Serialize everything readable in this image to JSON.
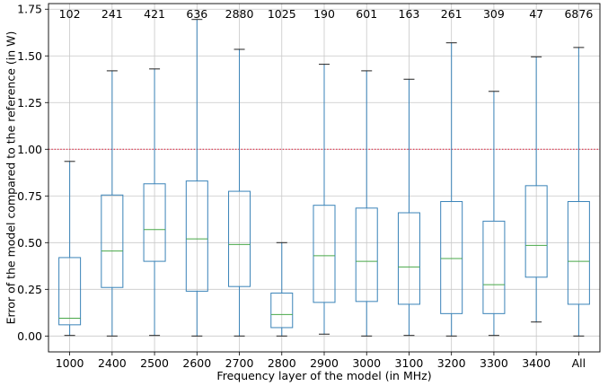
{
  "chart_data": {
    "type": "boxplot",
    "xlabel": "Frequency layer of the model (in MHz)",
    "ylabel": "Error of the model compared to the reference (in W)",
    "ylim": [
      -0.085,
      1.78
    ],
    "yticks": [
      0.0,
      0.25,
      0.5,
      0.75,
      1.0,
      1.25,
      1.5,
      1.75
    ],
    "ytick_labels": [
      "0.00",
      "0.25",
      "0.50",
      "0.75",
      "1.00",
      "1.25",
      "1.50",
      "1.75"
    ],
    "grid": true,
    "reference_line": {
      "y": 1.0,
      "color": "#e0304a",
      "style": "dotted"
    },
    "colors": {
      "box": "#3a83b8",
      "median": "#48a848",
      "whisker_cap": "#222222",
      "highlight_label": "#e31a1c"
    },
    "categories": [
      "1000",
      "2400",
      "2500",
      "2600",
      "2700",
      "2800",
      "2900",
      "3000",
      "3100",
      "3200",
      "3300",
      "3400",
      "All"
    ],
    "highlight_category": "All",
    "counts": [
      "102",
      "241",
      "421",
      "636",
      "2880",
      "1025",
      "190",
      "601",
      "163",
      "261",
      "309",
      "47",
      "6876"
    ],
    "boxes": [
      {
        "category": "1000",
        "whisker_low": 0.003,
        "q1": 0.06,
        "median": 0.095,
        "q3": 0.42,
        "whisker_high": 0.935
      },
      {
        "category": "2400",
        "whisker_low": 0.0,
        "q1": 0.26,
        "median": 0.455,
        "q3": 0.755,
        "whisker_high": 1.42
      },
      {
        "category": "2500",
        "whisker_low": 0.003,
        "q1": 0.4,
        "median": 0.57,
        "q3": 0.815,
        "whisker_high": 1.43
      },
      {
        "category": "2600",
        "whisker_low": 0.0,
        "q1": 0.24,
        "median": 0.52,
        "q3": 0.83,
        "whisker_high": 1.695
      },
      {
        "category": "2700",
        "whisker_low": 0.0,
        "q1": 0.265,
        "median": 0.49,
        "q3": 0.775,
        "whisker_high": 1.535
      },
      {
        "category": "2800",
        "whisker_low": 0.0,
        "q1": 0.045,
        "median": 0.115,
        "q3": 0.23,
        "whisker_high": 0.5
      },
      {
        "category": "2900",
        "whisker_low": 0.01,
        "q1": 0.18,
        "median": 0.43,
        "q3": 0.7,
        "whisker_high": 1.455
      },
      {
        "category": "3000",
        "whisker_low": 0.0,
        "q1": 0.185,
        "median": 0.4,
        "q3": 0.685,
        "whisker_high": 1.42
      },
      {
        "category": "3100",
        "whisker_low": 0.003,
        "q1": 0.17,
        "median": 0.37,
        "q3": 0.66,
        "whisker_high": 1.375
      },
      {
        "category": "3200",
        "whisker_low": 0.0,
        "q1": 0.12,
        "median": 0.415,
        "q3": 0.72,
        "whisker_high": 1.57
      },
      {
        "category": "3300",
        "whisker_low": 0.003,
        "q1": 0.12,
        "median": 0.275,
        "q3": 0.615,
        "whisker_high": 1.31
      },
      {
        "category": "3400",
        "whisker_low": 0.075,
        "q1": 0.315,
        "median": 0.485,
        "q3": 0.805,
        "whisker_high": 1.495
      },
      {
        "category": "All",
        "whisker_low": 0.0,
        "q1": 0.17,
        "median": 0.4,
        "q3": 0.72,
        "whisker_high": 1.545
      }
    ]
  }
}
